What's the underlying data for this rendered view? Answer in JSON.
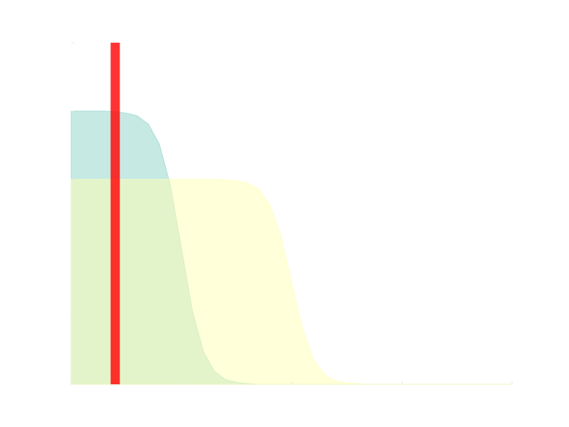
{
  "chart_data": {
    "type": "area",
    "x": [
      0,
      0.1,
      0.2,
      0.3,
      0.4,
      0.5,
      0.6,
      0.7,
      0.8,
      0.9,
      1.0,
      1.1,
      1.2,
      1.3,
      1.4,
      1.5,
      1.6,
      1.7,
      1.8,
      1.9,
      2.0,
      2.1,
      2.2,
      2.3,
      2.4,
      2.5,
      2.6,
      2.7,
      2.8,
      2.9,
      3.0,
      3.1,
      3.2,
      3.3,
      3.4,
      3.5,
      3.6,
      3.7,
      3.8,
      3.9,
      4.0
    ],
    "series": [
      {
        "color": "#8dd3c7",
        "values": [
          4,
          4,
          4,
          4,
          3.99,
          3.97,
          3.93,
          3.81,
          3.52,
          2.92,
          2,
          1.08,
          0.48,
          0.19,
          0.07,
          0.03,
          0.01,
          0,
          0,
          0,
          0,
          0,
          0,
          0,
          0,
          0,
          0,
          0,
          0,
          0,
          0,
          0,
          0,
          0,
          0,
          0,
          0,
          0,
          0,
          0,
          0
        ]
      },
      {
        "color": "#ffffb3",
        "values": [
          3,
          3,
          3,
          3,
          3,
          3,
          3,
          3,
          3,
          3,
          3,
          3,
          3,
          3,
          2.99,
          2.98,
          2.95,
          2.86,
          2.64,
          2.19,
          1.5,
          0.81,
          0.36,
          0.14,
          0.05,
          0.02,
          0.01,
          0,
          0,
          0,
          0,
          0,
          0,
          0,
          0,
          0,
          0,
          0,
          0,
          0,
          0
        ]
      }
    ],
    "bars": {
      "color": "#ff0000",
      "x": [
        0.4
      ],
      "values": [
        5
      ]
    },
    "xlim": [
      0,
      4
    ],
    "ylim": [
      0,
      5
    ],
    "xticks": [
      0,
      1,
      2,
      3,
      4
    ],
    "yticks": [
      1,
      2,
      3,
      4,
      5
    ]
  }
}
